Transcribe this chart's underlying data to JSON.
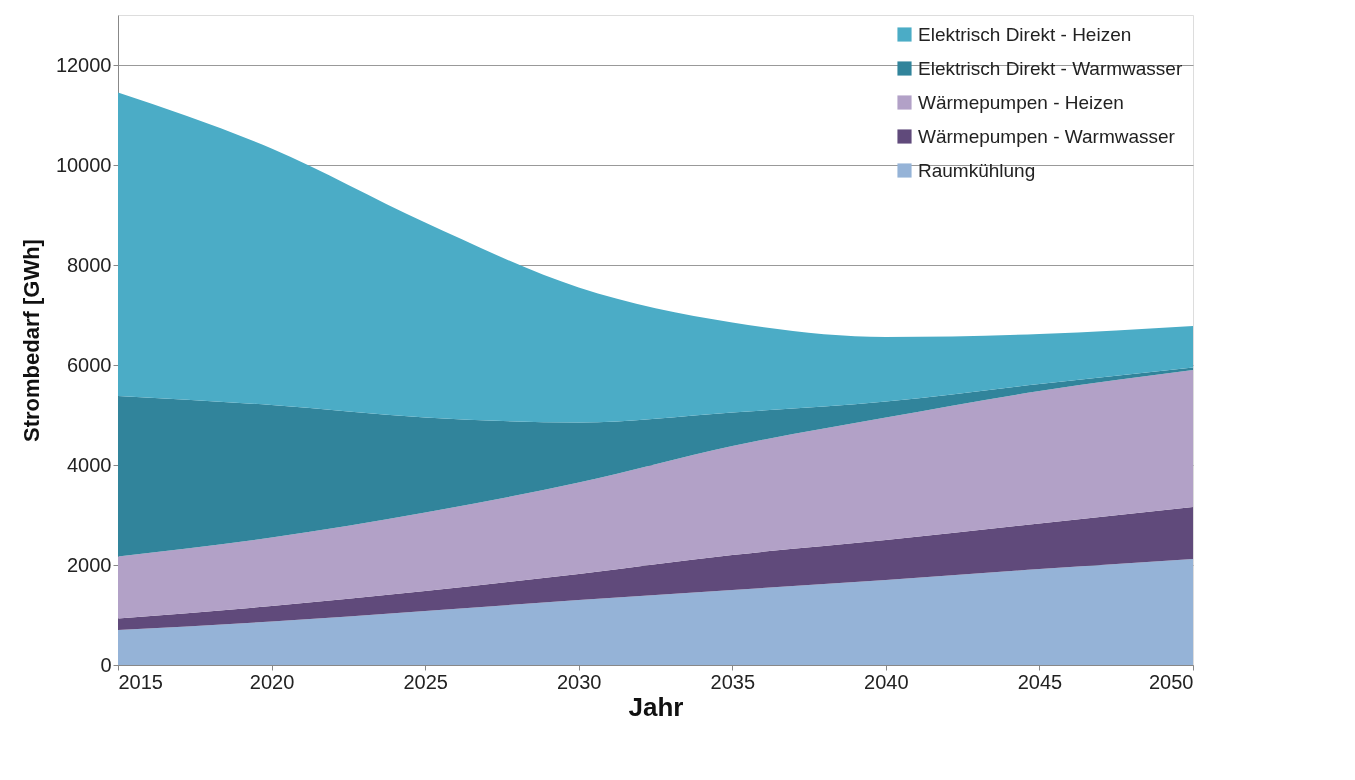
{
  "chart_data": {
    "type": "area",
    "stacked": true,
    "xlabel": "Jahr",
    "ylabel": "Strombedarf [GWh]",
    "x": [
      2015,
      2020,
      2025,
      2030,
      2035,
      2040,
      2045,
      2050
    ],
    "xlim": [
      2015,
      2050
    ],
    "xticks": [
      2015,
      2020,
      2025,
      2030,
      2035,
      2040,
      2045,
      2050
    ],
    "ylim": [
      0,
      13000
    ],
    "yticks": [
      0,
      2000,
      4000,
      6000,
      8000,
      10000,
      12000
    ],
    "grid": "y",
    "legend": "top right",
    "series": [
      {
        "name": "Raumkühlung",
        "color": "#95b3d7",
        "values": [
          700,
          870,
          1080,
          1300,
          1500,
          1700,
          1920,
          2120
        ]
      },
      {
        "name": "Wärmepumpen - Warmwasser",
        "color": "#604a7b",
        "values": [
          230,
          310,
          400,
          520,
          700,
          800,
          910,
          1040
        ]
      },
      {
        "name": "Wärmepumpen - Heizen",
        "color": "#b2a1c7",
        "values": [
          1240,
          1370,
          1570,
          1830,
          2180,
          2450,
          2650,
          2740
        ]
      },
      {
        "name": "Elektrisch Direkt - Warmwasser",
        "color": "#31849b",
        "values": [
          3210,
          2650,
          1900,
          1200,
          670,
          320,
          140,
          50
        ]
      },
      {
        "name": "Elektrisch Direkt - Heizen",
        "color": "#4bacc6",
        "values": [
          6070,
          5130,
          3900,
          2700,
          1800,
          1290,
          1000,
          830
        ]
      }
    ]
  }
}
